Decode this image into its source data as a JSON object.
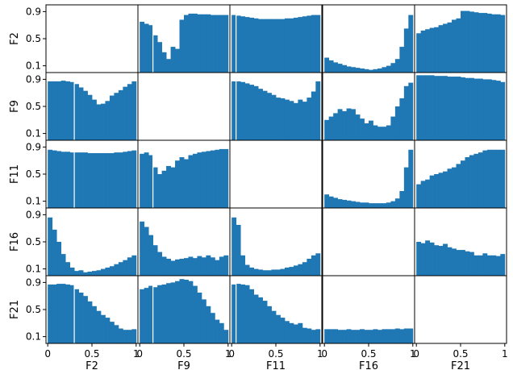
{
  "chart_data": {
    "type": "bar",
    "layout": "pairwise-histogram-matrix",
    "bar_color": "#1f77b4",
    "variables": [
      "F2",
      "F9",
      "F11",
      "F16",
      "F21"
    ],
    "row_labels": [
      "F2",
      "F9",
      "F11",
      "F16",
      "F21"
    ],
    "col_labels": [
      "F2",
      "F9",
      "F11",
      "F16",
      "F21"
    ],
    "x_ticks": [
      {
        "v": 0,
        "label": "0"
      },
      {
        "v": 0.5,
        "label": "0.5"
      },
      {
        "v": 1,
        "label": "1"
      }
    ],
    "y_ticks": [
      {
        "v": 0.1,
        "label": "0.1"
      },
      {
        "v": 0.5,
        "label": "0.5"
      },
      {
        "v": 0.9,
        "label": "0.9"
      }
    ],
    "xlim": [
      -0.02,
      1.02
    ],
    "ylim": [
      0.0,
      1.0
    ],
    "bins": 20,
    "gaps": {
      "0-1": [
        0.15
      ],
      "0-2": [
        0.05
      ],
      "0-3": [],
      "0-4": [],
      "1-0": [
        0.3
      ],
      "1-2": [
        0.05
      ],
      "1-3": [],
      "1-4": [],
      "2-0": [
        0.3
      ],
      "2-1": [
        0.15
      ],
      "2-3": [],
      "2-4": [],
      "3-0": [],
      "3-1": [],
      "3-2": [],
      "3-4": [],
      "4-0": [
        0.3
      ],
      "4-1": [
        0.15
      ],
      "4-2": [
        0.05
      ],
      "4-3": []
    },
    "panels": [
      [
        null,
        [
          0.75,
          0.72,
          0.7,
          0.55,
          0.45,
          0.3,
          0.2,
          0.38,
          0.35,
          0.78,
          0.85,
          0.87,
          0.87,
          0.86,
          0.86,
          0.86,
          0.85,
          0.85,
          0.85,
          0.85
        ],
        [
          0.85,
          0.84,
          0.83,
          0.82,
          0.81,
          0.8,
          0.79,
          0.79,
          0.79,
          0.79,
          0.79,
          0.79,
          0.8,
          0.8,
          0.81,
          0.82,
          0.83,
          0.84,
          0.85,
          0.85
        ],
        [
          0.22,
          0.18,
          0.15,
          0.13,
          0.11,
          0.09,
          0.08,
          0.07,
          0.06,
          0.05,
          0.04,
          0.05,
          0.06,
          0.08,
          0.1,
          0.14,
          0.2,
          0.38,
          0.65,
          0.85
        ],
        [
          0.58,
          0.62,
          0.64,
          0.66,
          0.67,
          0.7,
          0.72,
          0.74,
          0.78,
          0.8,
          0.91,
          0.91,
          0.9,
          0.89,
          0.88,
          0.88,
          0.87,
          0.86,
          0.86,
          0.85
        ]
      ],
      [
        [
          0.87,
          0.87,
          0.87,
          0.88,
          0.87,
          0.86,
          0.83,
          0.78,
          0.73,
          0.67,
          0.6,
          0.53,
          0.54,
          0.58,
          0.66,
          0.7,
          0.74,
          0.79,
          0.83,
          0.87
        ],
        null,
        [
          0.87,
          0.87,
          0.86,
          0.84,
          0.82,
          0.8,
          0.76,
          0.73,
          0.7,
          0.67,
          0.63,
          0.62,
          0.6,
          0.58,
          0.55,
          0.6,
          0.57,
          0.63,
          0.72,
          0.87
        ],
        [
          0.3,
          0.35,
          0.4,
          0.46,
          0.43,
          0.47,
          0.46,
          0.38,
          0.32,
          0.25,
          0.29,
          0.22,
          0.2,
          0.2,
          0.22,
          0.35,
          0.5,
          0.62,
          0.8,
          0.85
        ],
        [
          0.96,
          0.96,
          0.96,
          0.96,
          0.95,
          0.95,
          0.95,
          0.94,
          0.94,
          0.94,
          0.93,
          0.92,
          0.92,
          0.91,
          0.91,
          0.9,
          0.9,
          0.89,
          0.88,
          0.86
        ]
      ],
      [
        [
          0.86,
          0.85,
          0.84,
          0.83,
          0.83,
          0.82,
          0.82,
          0.82,
          0.82,
          0.81,
          0.81,
          0.81,
          0.81,
          0.81,
          0.81,
          0.82,
          0.82,
          0.83,
          0.84,
          0.85
        ],
        [
          0.8,
          0.82,
          0.78,
          0.6,
          0.5,
          0.55,
          0.62,
          0.6,
          0.7,
          0.75,
          0.72,
          0.78,
          0.8,
          0.82,
          0.83,
          0.84,
          0.85,
          0.86,
          0.87,
          0.87
        ],
        null,
        [
          0.2,
          0.17,
          0.15,
          0.13,
          0.12,
          0.11,
          0.1,
          0.09,
          0.08,
          0.08,
          0.07,
          0.07,
          0.07,
          0.07,
          0.08,
          0.1,
          0.14,
          0.25,
          0.6,
          0.86
        ],
        [
          0.35,
          0.4,
          0.42,
          0.48,
          0.5,
          0.52,
          0.54,
          0.58,
          0.6,
          0.65,
          0.7,
          0.75,
          0.78,
          0.8,
          0.82,
          0.85,
          0.86,
          0.86,
          0.86,
          0.86
        ]
      ],
      [
        [
          0.86,
          0.68,
          0.5,
          0.32,
          0.2,
          0.12,
          0.07,
          0.08,
          0.05,
          0.06,
          0.07,
          0.08,
          0.1,
          0.12,
          0.14,
          0.17,
          0.2,
          0.23,
          0.27,
          0.3
        ],
        [
          0.8,
          0.72,
          0.6,
          0.45,
          0.35,
          0.28,
          0.25,
          0.22,
          0.24,
          0.25,
          0.26,
          0.28,
          0.26,
          0.29,
          0.27,
          0.3,
          0.27,
          0.23,
          0.28,
          0.3
        ],
        [
          0.86,
          0.75,
          0.3,
          0.16,
          0.12,
          0.1,
          0.09,
          0.08,
          0.08,
          0.09,
          0.09,
          0.1,
          0.12,
          0.13,
          0.15,
          0.17,
          0.2,
          0.25,
          0.3,
          0.33
        ],
        null,
        [
          0.5,
          0.48,
          0.52,
          0.49,
          0.45,
          0.44,
          0.47,
          0.42,
          0.4,
          0.38,
          0.38,
          0.36,
          0.35,
          0.3,
          0.3,
          0.33,
          0.3,
          0.3,
          0.29,
          0.32
        ]
      ],
      [
        [
          0.87,
          0.87,
          0.88,
          0.88,
          0.87,
          0.86,
          0.8,
          0.75,
          0.7,
          0.62,
          0.55,
          0.48,
          0.42,
          0.38,
          0.32,
          0.27,
          0.22,
          0.2,
          0.2,
          0.21
        ],
        [
          0.8,
          0.82,
          0.85,
          0.83,
          0.86,
          0.87,
          0.89,
          0.9,
          0.92,
          0.95,
          0.94,
          0.92,
          0.85,
          0.75,
          0.65,
          0.55,
          0.45,
          0.35,
          0.3,
          0.2
        ],
        [
          0.87,
          0.88,
          0.87,
          0.86,
          0.8,
          0.72,
          0.68,
          0.63,
          0.55,
          0.48,
          0.42,
          0.38,
          0.33,
          0.3,
          0.28,
          0.3,
          0.23,
          0.22,
          0.2,
          0.21
        ],
        [
          0.21,
          0.21,
          0.21,
          0.2,
          0.2,
          0.21,
          0.2,
          0.2,
          0.21,
          0.2,
          0.2,
          0.21,
          0.2,
          0.21,
          0.21,
          0.21,
          0.22,
          0.21,
          0.22,
          0.22
        ],
        null
      ]
    ]
  }
}
